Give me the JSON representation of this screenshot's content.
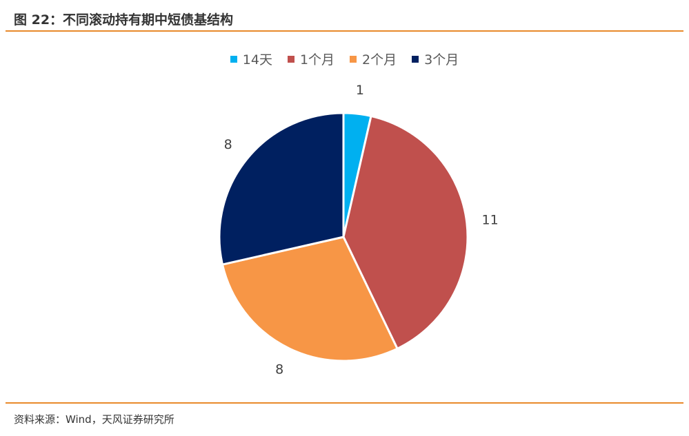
{
  "header": {
    "title": "图 22：不同滚动持有期中短债基结构"
  },
  "footer": {
    "source": "资料来源：Wind，天风证券研究所"
  },
  "chart_data": {
    "type": "pie",
    "categories": [
      "14天",
      "1个月",
      "2个月",
      "3个月"
    ],
    "values": [
      1,
      11,
      8,
      8
    ],
    "data_labels": [
      "1",
      "11",
      "8",
      "8"
    ],
    "colors": [
      "#00B0F0",
      "#C0504D",
      "#F79646",
      "#002060"
    ],
    "legend_position": "top"
  }
}
